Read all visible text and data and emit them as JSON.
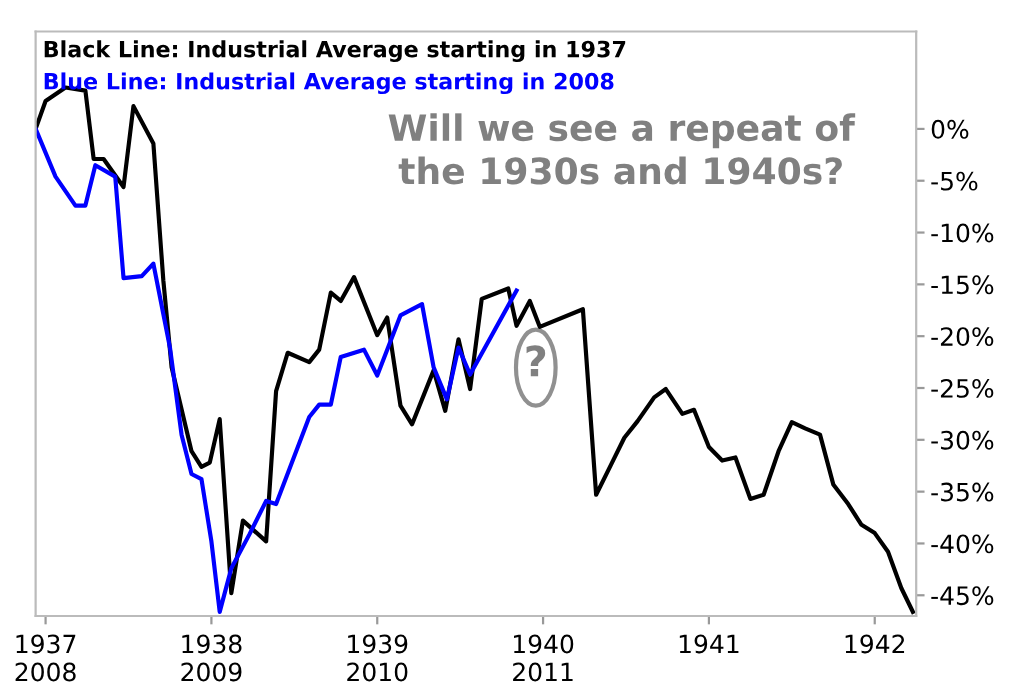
{
  "chart_data": {
    "type": "line",
    "series": [
      {
        "name": "Black Line: Industrial Average starting in 1937",
        "color": "#000000",
        "x": [
          1936.94,
          1937.0,
          1937.12,
          1937.24,
          1937.29,
          1937.35,
          1937.47,
          1937.53,
          1937.65,
          1937.71,
          1937.76,
          1937.88,
          1937.94,
          1937.99,
          1938.05,
          1938.12,
          1938.19,
          1938.33,
          1938.39,
          1938.46,
          1938.59,
          1938.65,
          1938.72,
          1938.78,
          1938.86,
          1939.0,
          1939.06,
          1939.14,
          1939.21,
          1939.34,
          1939.41,
          1939.49,
          1939.56,
          1939.63,
          1939.79,
          1939.84,
          1939.92,
          1939.98,
          1940.24,
          1940.32,
          1940.41,
          1940.49,
          1940.57,
          1940.67,
          1940.74,
          1940.84,
          1940.91,
          1941.0,
          1941.08,
          1941.16,
          1941.25,
          1941.33,
          1941.42,
          1941.5,
          1941.58,
          1941.67,
          1941.75,
          1941.84,
          1941.92,
          1942.0,
          1942.08,
          1942.16,
          1942.23
        ],
        "values": [
          0,
          2.7,
          4.0,
          3.7,
          -2.9,
          -2.9,
          -5.6,
          2.2,
          -1.4,
          -14.6,
          -23,
          -31.1,
          -32.6,
          -32.2,
          -28,
          -44.8,
          -37.8,
          -39.8,
          -25.3,
          -21.6,
          -22.5,
          -21.3,
          -15.8,
          -16.6,
          -14.3,
          -19.9,
          -18.2,
          -26.7,
          -28.5,
          -23.3,
          -27.2,
          -20.3,
          -25.1,
          -16.4,
          -15.4,
          -19.0,
          -16.6,
          -19.1,
          -17.4,
          -35.3,
          -32.4,
          -29.8,
          -28.2,
          -25.9,
          -25.1,
          -27.5,
          -27.1,
          -30.7,
          -32.0,
          -31.7,
          -35.7,
          -35.3,
          -31.1,
          -28.3,
          -28.9,
          -29.5,
          -34.3,
          -36.2,
          -38.2,
          -39.0,
          -40.8,
          -44.3,
          -46.6
        ]
      },
      {
        "name": "Blue Line: Industrial Average starting in 2008",
        "color": "#0000ff",
        "x": [
          1936.94,
          1937.06,
          1937.18,
          1937.24,
          1937.3,
          1937.42,
          1937.47,
          1937.58,
          1937.65,
          1937.75,
          1937.82,
          1937.88,
          1937.94,
          1938.0,
          1938.05,
          1938.12,
          1938.23,
          1938.33,
          1938.39,
          1938.59,
          1938.65,
          1938.72,
          1938.78,
          1938.92,
          1939.0,
          1939.14,
          1939.27,
          1939.34,
          1939.42,
          1939.49,
          1939.56,
          1939.84
        ],
        "values": [
          0,
          -4.6,
          -7.4,
          -7.4,
          -3.5,
          -4.6,
          -14.4,
          -14.2,
          -13.0,
          -21.1,
          -29.5,
          -33.3,
          -33.8,
          -39.8,
          -46.6,
          -42.4,
          -39.1,
          -35.9,
          -36.2,
          -27.8,
          -26.6,
          -26.6,
          -22.0,
          -21.3,
          -23.8,
          -18.0,
          -16.9,
          -23.0,
          -26.1,
          -21.1,
          -23.7,
          -15.6
        ]
      }
    ],
    "xlim": [
      1936.94,
      1942.25
    ],
    "xticks": [
      {
        "value": 1937,
        "label": "1937\n2008"
      },
      {
        "value": 1938,
        "label": "1938\n2009"
      },
      {
        "value": 1939,
        "label": "1939\n2010"
      },
      {
        "value": 1940,
        "label": "1940\n2011"
      },
      {
        "value": 1941,
        "label": "1941"
      },
      {
        "value": 1942,
        "label": "1942"
      }
    ],
    "ylim": [
      -47,
      9.4
    ],
    "yticks": [
      {
        "value": 0,
        "label": "0%"
      },
      {
        "value": -5,
        "label": "-5%"
      },
      {
        "value": -10,
        "label": "-10%"
      },
      {
        "value": -15,
        "label": "-15%"
      },
      {
        "value": -20,
        "label": "-20%"
      },
      {
        "value": -25,
        "label": "-25%"
      },
      {
        "value": -30,
        "label": "-30%"
      },
      {
        "value": -35,
        "label": "-35%"
      },
      {
        "value": -40,
        "label": "-40%"
      },
      {
        "value": -45,
        "label": "-45%"
      }
    ],
    "annotations": [
      "Will we see a repeat of\nthe 1930s and 1940s?",
      "?"
    ],
    "grid": false,
    "legend": "top left",
    "marker": "none",
    "line_style": "solid"
  }
}
